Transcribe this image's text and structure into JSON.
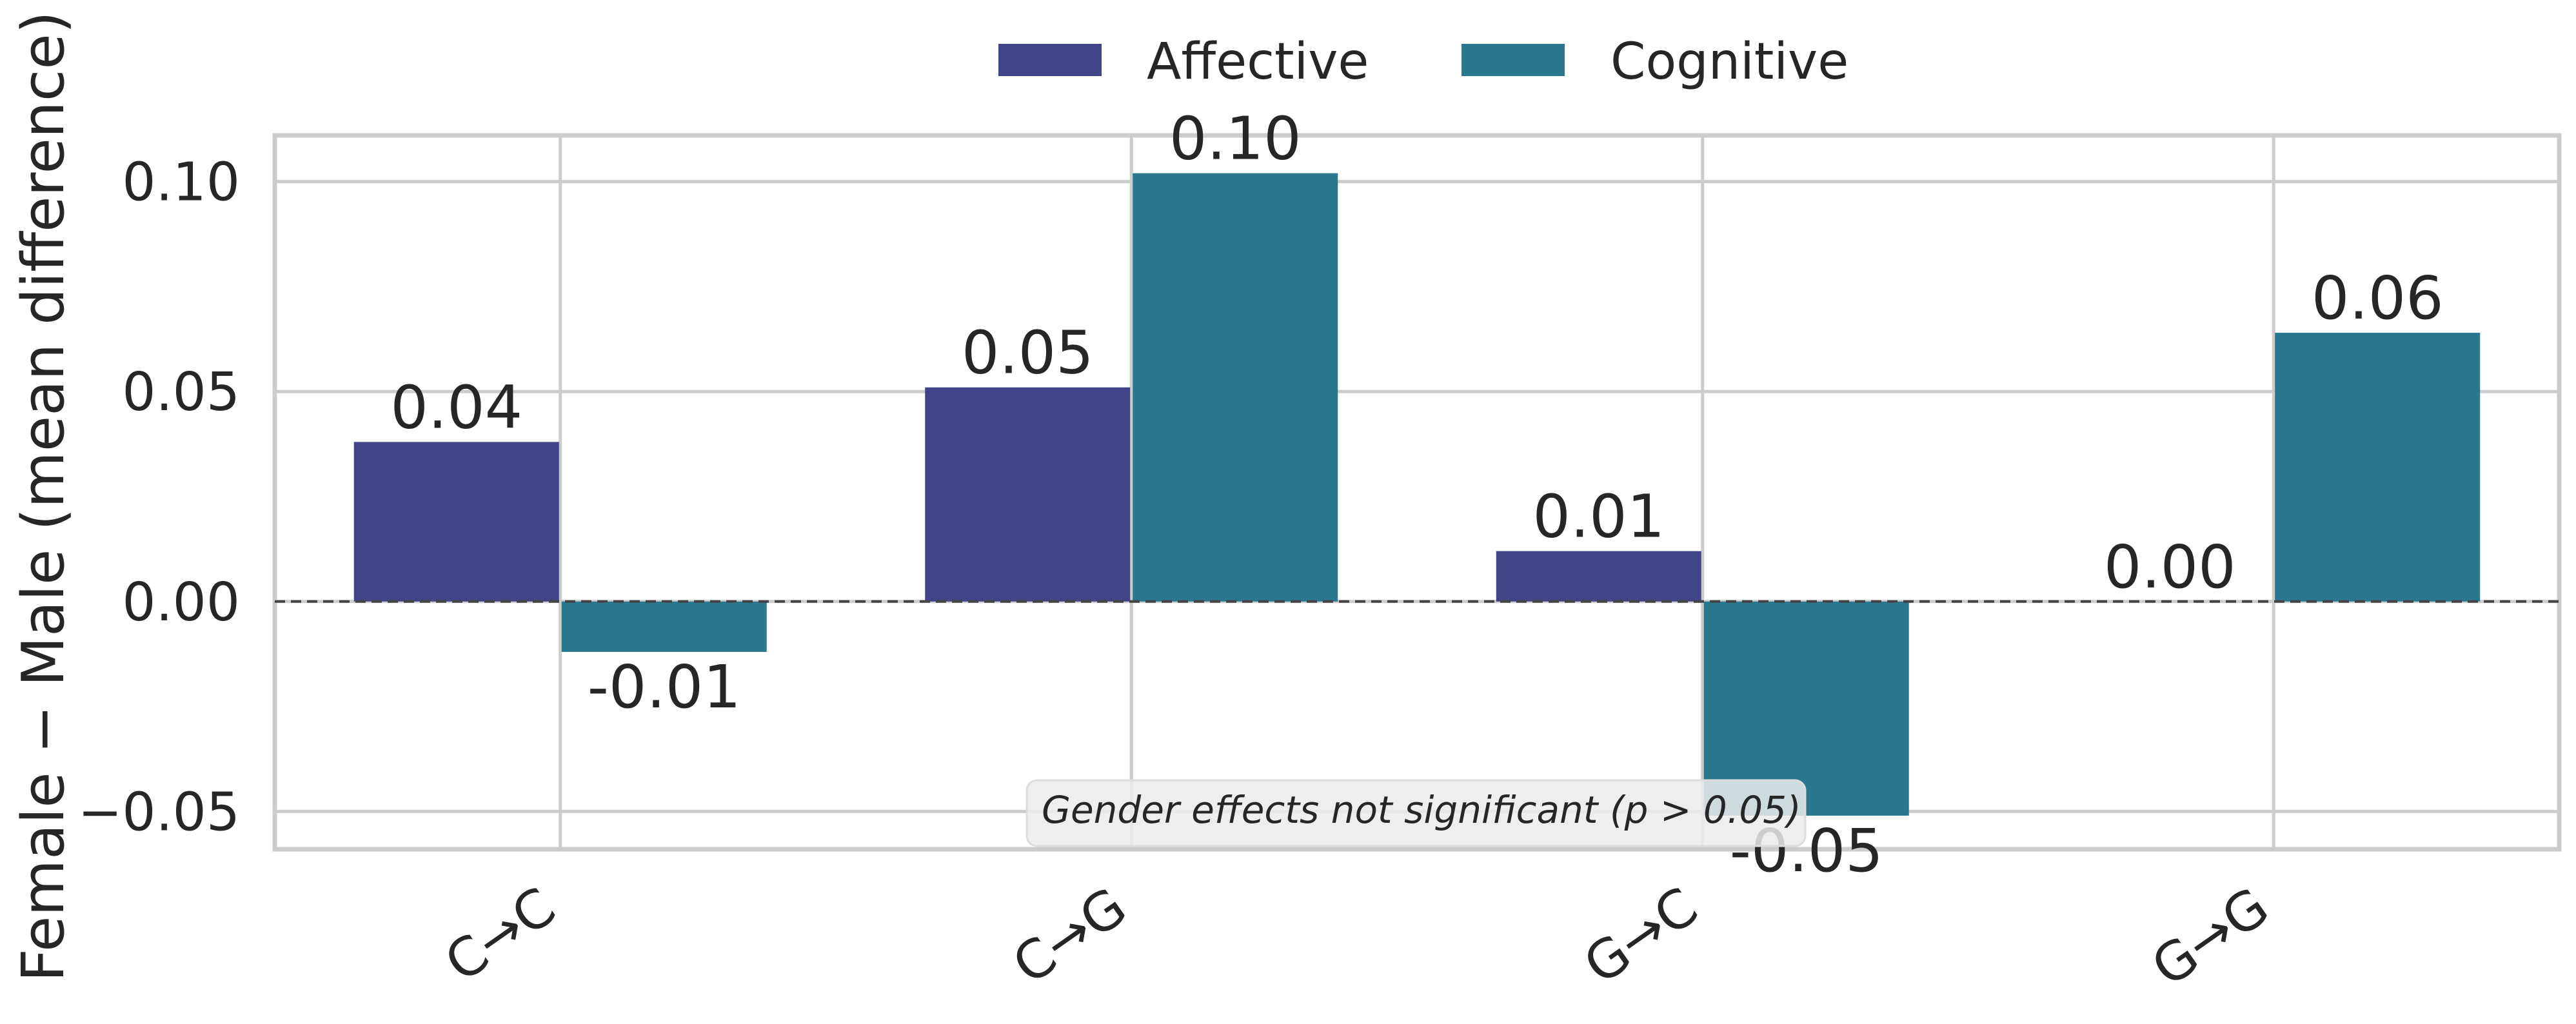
{
  "chart_data": {
    "type": "bar",
    "title": "",
    "xlabel": "",
    "ylabel": "Female − Male (mean difference)",
    "categories": [
      "C→C",
      "C→G",
      "G→C",
      "G→G"
    ],
    "series": [
      {
        "name": "Affective",
        "color": "#414487",
        "values": [
          0.038,
          0.051,
          0.012,
          0.0
        ],
        "labels": [
          "0.04",
          "0.05",
          "0.01",
          "0.00"
        ]
      },
      {
        "name": "Cognitive",
        "color": "#2A788E",
        "values": [
          -0.012,
          0.102,
          -0.051,
          0.064
        ],
        "labels": [
          "-0.01",
          "0.10",
          "-0.05",
          "0.06"
        ]
      }
    ],
    "ylim": [
      -0.059,
      0.111
    ],
    "yticks": [
      -0.05,
      0.0,
      0.05,
      0.1
    ],
    "ytick_labels": [
      "−0.05",
      "0.00",
      "0.05",
      "0.10"
    ],
    "grid": true,
    "reference_line": 0,
    "legend": {
      "placement": "top-center",
      "entries": [
        "Affective",
        "Cognitive"
      ]
    },
    "annotation": "Gender effects not significant (p > 0.05)"
  }
}
